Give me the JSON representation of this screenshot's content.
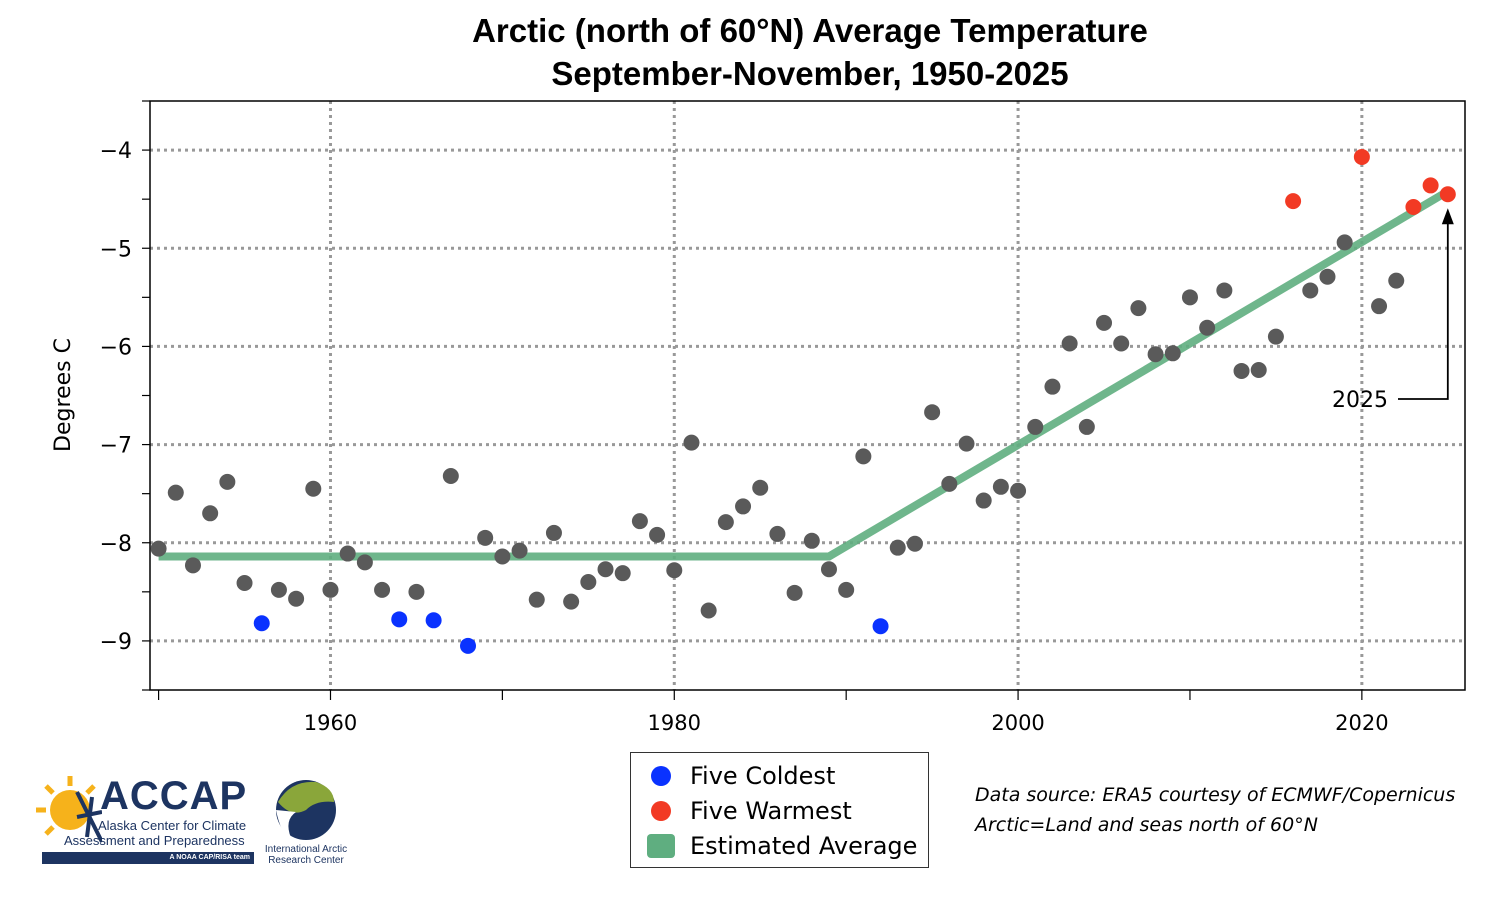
{
  "chart_data": {
    "type": "scatter",
    "title": "Arctic (north of 60°N) Average Temperature",
    "subtitle": "September-November, 1950-2025",
    "xlabel": "",
    "ylabel": "Degrees C",
    "xlim": [
      1949.5,
      2026
    ],
    "ylim": [
      -9.5,
      -3.5
    ],
    "x_ticks": [
      1960,
      1980,
      2000,
      2020
    ],
    "x_tick_labels": [
      "1960",
      "1980",
      "2000",
      "2020"
    ],
    "y_ticks": [
      -4,
      -5,
      -6,
      -7,
      -8,
      -9
    ],
    "y_tick_labels": [
      "−4",
      "−5",
      "−6",
      "−7",
      "−8",
      "−9"
    ],
    "grid": true,
    "x": [
      1950,
      1951,
      1952,
      1953,
      1954,
      1955,
      1956,
      1957,
      1958,
      1959,
      1960,
      1961,
      1962,
      1963,
      1964,
      1965,
      1966,
      1967,
      1968,
      1969,
      1970,
      1971,
      1972,
      1973,
      1974,
      1975,
      1976,
      1977,
      1978,
      1979,
      1980,
      1981,
      1982,
      1983,
      1984,
      1985,
      1986,
      1987,
      1988,
      1989,
      1990,
      1991,
      1992,
      1993,
      1994,
      1995,
      1996,
      1997,
      1998,
      1999,
      2000,
      2001,
      2002,
      2003,
      2004,
      2005,
      2006,
      2007,
      2008,
      2009,
      2010,
      2011,
      2012,
      2013,
      2014,
      2015,
      2016,
      2017,
      2018,
      2019,
      2020,
      2021,
      2022,
      2023,
      2024,
      2025
    ],
    "values": [
      -8.06,
      -7.49,
      -8.23,
      -7.7,
      -7.38,
      -8.41,
      -8.82,
      -8.48,
      -8.57,
      -7.45,
      -8.48,
      -8.11,
      -8.2,
      -8.48,
      -8.78,
      -8.5,
      -8.79,
      -7.32,
      -9.05,
      -7.95,
      -8.14,
      -8.08,
      -8.58,
      -7.9,
      -8.6,
      -8.4,
      -8.27,
      -8.31,
      -7.78,
      -7.92,
      -8.28,
      -6.98,
      -8.69,
      -7.79,
      -7.63,
      -7.44,
      -7.91,
      -8.51,
      -7.98,
      -8.27,
      -8.48,
      -7.12,
      -8.85,
      -8.05,
      -8.01,
      -6.67,
      -7.4,
      -6.99,
      -7.57,
      -7.43,
      -7.47,
      -6.82,
      -6.41,
      -5.97,
      -6.82,
      -5.76,
      -5.97,
      -5.61,
      -6.08,
      -6.07,
      -5.5,
      -5.81,
      -5.43,
      -6.25,
      -6.24,
      -5.9,
      -4.52,
      -5.43,
      -5.29,
      -4.94,
      -4.07,
      -5.59,
      -5.33,
      -4.58,
      -4.36,
      -4.45
    ],
    "five_coldest": [
      1956,
      1964,
      1966,
      1968,
      1992
    ],
    "five_warmest": [
      2016,
      2020,
      2023,
      2024,
      2025
    ],
    "trend": {
      "name": "Estimated Average",
      "points": [
        [
          1950,
          -8.14
        ],
        [
          1989,
          -8.14
        ],
        [
          2025,
          -4.42
        ]
      ]
    },
    "annotation": {
      "text": "2025",
      "target_year": 2025
    },
    "legend": {
      "placement": "below",
      "entries": [
        "Five Coldest",
        "Five Warmest",
        "Estimated Average"
      ]
    },
    "colors": {
      "normal": "#5a5a5a",
      "coldest": "#0a32ff",
      "warmest": "#f23a24",
      "trend": "#5fae80"
    }
  },
  "source": {
    "line1": "Data source: ERA5 courtesy of ECMWF/Copernicus",
    "line2": "Arctic=Land and seas north of 60°N"
  },
  "logos": {
    "accap": {
      "name": "ACCAP",
      "line1": "Alaska Center for Climate",
      "line2": "Assessment and Preparedness",
      "tag": "A NOAA CAP/RISA team"
    },
    "iarc": {
      "line1": "International Arctic",
      "line2": "Research Center"
    }
  }
}
